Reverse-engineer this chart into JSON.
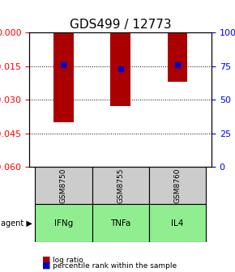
{
  "title": "GDS499 / 12773",
  "categories": [
    "IFNg",
    "TNFa",
    "IL4"
  ],
  "gsm_labels": [
    "GSM8750",
    "GSM8755",
    "GSM8760"
  ],
  "log_ratios": [
    -0.04,
    -0.033,
    -0.022
  ],
  "percentile_ranks": [
    76,
    73,
    76
  ],
  "ylim_left": [
    -0.06,
    0
  ],
  "ylim_right": [
    0,
    100
  ],
  "yticks_left": [
    0,
    -0.015,
    -0.03,
    -0.045,
    -0.06
  ],
  "yticks_right": [
    0,
    25,
    50,
    75,
    100
  ],
  "bar_color": "#aa0000",
  "dot_color": "#0000cc",
  "gsm_bg": "#cccccc",
  "agent_bg": "#90ee90",
  "grid_color": "#000000",
  "legend_bar_label": "log ratio",
  "legend_dot_label": "percentile rank within the sample",
  "agent_label": "agent",
  "title_fontsize": 11,
  "tick_fontsize": 8,
  "label_fontsize": 8
}
